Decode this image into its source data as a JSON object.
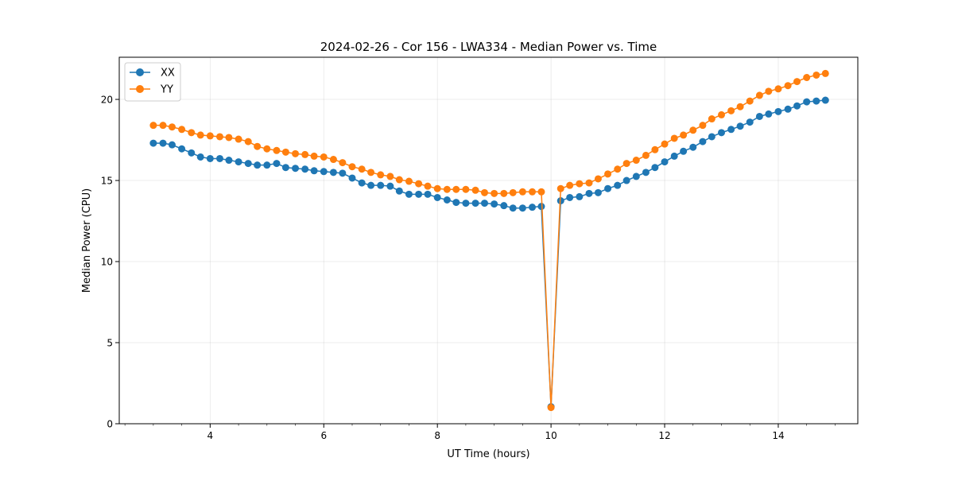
{
  "chart_data": {
    "type": "line",
    "title": "2024-02-26 - Cor 156 - LWA334 - Median Power vs. Time",
    "xlabel": "UT Time (hours)",
    "ylabel": "Median Power (CPU)",
    "xlim": [
      2.4,
      15.4
    ],
    "ylim": [
      0,
      22.6
    ],
    "xticks": [
      4,
      6,
      8,
      10,
      12,
      14
    ],
    "yticks": [
      0,
      5,
      10,
      15,
      20
    ],
    "grid": true,
    "legend_position": "top-left",
    "x": [
      3.0,
      3.17,
      3.33,
      3.5,
      3.67,
      3.83,
      4.0,
      4.17,
      4.33,
      4.5,
      4.67,
      4.83,
      5.0,
      5.17,
      5.33,
      5.5,
      5.67,
      5.83,
      6.0,
      6.17,
      6.33,
      6.5,
      6.67,
      6.83,
      7.0,
      7.17,
      7.33,
      7.5,
      7.67,
      7.83,
      8.0,
      8.17,
      8.33,
      8.5,
      8.67,
      8.83,
      9.0,
      9.17,
      9.33,
      9.5,
      9.67,
      9.83,
      10.0,
      10.17,
      10.33,
      10.5,
      10.67,
      10.83,
      11.0,
      11.17,
      11.33,
      11.5,
      11.67,
      11.83,
      12.0,
      12.17,
      12.33,
      12.5,
      12.67,
      12.83,
      13.0,
      13.17,
      13.33,
      13.5,
      13.67,
      13.83,
      14.0,
      14.17,
      14.33,
      14.5,
      14.67,
      14.83
    ],
    "series": [
      {
        "name": "XX",
        "color": "#1f77b4",
        "values": [
          17.3,
          17.3,
          17.2,
          16.95,
          16.7,
          16.45,
          16.35,
          16.35,
          16.25,
          16.15,
          16.05,
          15.95,
          15.95,
          16.05,
          15.8,
          15.75,
          15.7,
          15.6,
          15.55,
          15.5,
          15.45,
          15.15,
          14.85,
          14.7,
          14.7,
          14.65,
          14.35,
          14.15,
          14.15,
          14.15,
          13.95,
          13.8,
          13.65,
          13.6,
          13.6,
          13.6,
          13.55,
          13.45,
          13.3,
          13.3,
          13.35,
          13.4,
          1.05,
          13.75,
          13.95,
          14.0,
          14.2,
          14.25,
          14.5,
          14.7,
          15.0,
          15.25,
          15.5,
          15.8,
          16.15,
          16.5,
          16.8,
          17.05,
          17.4,
          17.7,
          17.95,
          18.15,
          18.35,
          18.6,
          18.95,
          19.1,
          19.25,
          19.4,
          19.6,
          19.85,
          19.9,
          19.95
        ]
      },
      {
        "name": "YY",
        "color": "#ff7f0e",
        "values": [
          18.4,
          18.4,
          18.3,
          18.15,
          17.95,
          17.8,
          17.75,
          17.7,
          17.65,
          17.55,
          17.4,
          17.1,
          16.95,
          16.85,
          16.75,
          16.65,
          16.6,
          16.5,
          16.45,
          16.3,
          16.1,
          15.85,
          15.7,
          15.5,
          15.35,
          15.25,
          15.05,
          14.95,
          14.8,
          14.65,
          14.5,
          14.45,
          14.45,
          14.45,
          14.4,
          14.25,
          14.2,
          14.2,
          14.25,
          14.3,
          14.3,
          14.3,
          1.0,
          14.5,
          14.7,
          14.8,
          14.85,
          15.1,
          15.4,
          15.7,
          16.05,
          16.25,
          16.55,
          16.9,
          17.25,
          17.6,
          17.8,
          18.1,
          18.4,
          18.8,
          19.05,
          19.3,
          19.55,
          19.9,
          20.25,
          20.5,
          20.65,
          20.85,
          21.1,
          21.35,
          21.5,
          21.6
        ]
      }
    ]
  }
}
